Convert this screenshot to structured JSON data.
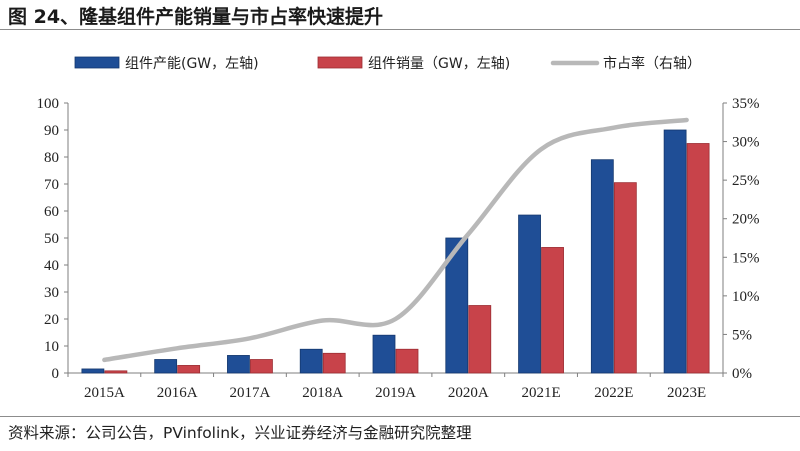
{
  "title": "图 24、隆基组件产能销量与市占率快速提升",
  "source": "资料来源：公司公告，PVinfolink，兴业证券经济与金融研究院整理",
  "colors": {
    "capacity": "#1f4e96",
    "sales": "#c8434a",
    "share": "#b8b8b8"
  },
  "chart_data": {
    "type": "bar",
    "categories": [
      "2015A",
      "2016A",
      "2017A",
      "2018A",
      "2019A",
      "2020A",
      "2021E",
      "2022E",
      "2023E"
    ],
    "series": [
      {
        "name": "组件产能(GW，左轴)",
        "type": "bar",
        "axis": "left",
        "values": [
          1.5,
          5,
          6.5,
          8.8,
          14,
          50,
          58.5,
          79,
          90
        ]
      },
      {
        "name": "组件销量（GW，左轴)",
        "type": "bar",
        "axis": "left",
        "values": [
          0.8,
          2.8,
          5,
          7.3,
          8.8,
          25,
          46.5,
          70.5,
          85
        ]
      },
      {
        "name": "市占率（右轴）",
        "type": "line",
        "axis": "right",
        "values": [
          1.7,
          3.2,
          4.5,
          6.8,
          7.0,
          18,
          29,
          31.8,
          32.8
        ],
        "unit": "%"
      }
    ],
    "left_axis": {
      "ylim": [
        0,
        100
      ],
      "ticks": [
        "0",
        "10",
        "20",
        "30",
        "40",
        "50",
        "60",
        "70",
        "80",
        "90",
        "100"
      ]
    },
    "right_axis": {
      "ylim": [
        0,
        35
      ],
      "ticks": [
        "0%",
        "5%",
        "10%",
        "15%",
        "20%",
        "25%",
        "30%",
        "35%"
      ]
    },
    "legend": "top",
    "grid": false
  }
}
